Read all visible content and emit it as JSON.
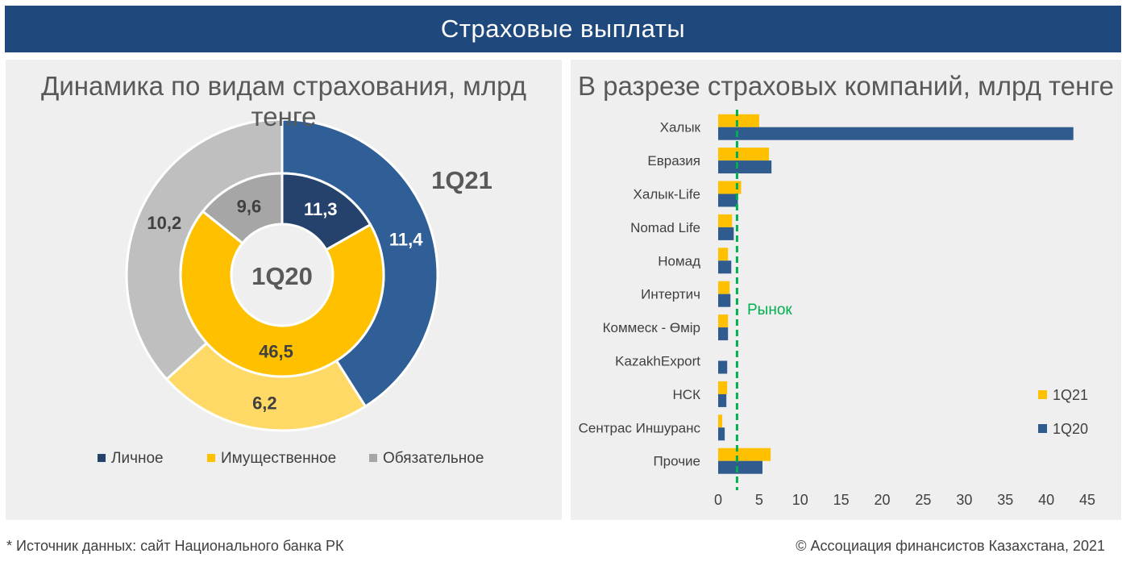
{
  "banner": "Страховые выплаты",
  "left_title": "Динамика по видам страхования, млрд тенге",
  "right_title": "В разрезе страховых компаний, млрд тенге",
  "footer_left": "* Источник данных: сайт Национального банка РК",
  "footer_right": "© Ассоциация финансистов Казахстана, 2021",
  "chart_data": [
    {
      "type": "pie",
      "variant": "donut",
      "title": "Динамика по видам страхования, млрд тенге",
      "categories": [
        "Личное",
        "Имущественное",
        "Обязательное"
      ],
      "colors": [
        "#2f5b8e",
        "#ffc000",
        "#bfbfbf"
      ],
      "inner_colors": [
        "#24426b",
        "#ffc000",
        "#a6a6a6"
      ],
      "outer_colors": [
        "#2f5f96",
        "#ffd966",
        "#bfbfbf"
      ],
      "series": [
        {
          "name": "1Q21",
          "ring": "outer",
          "values": [
            11.4,
            6.2,
            10.2
          ],
          "labels": [
            "11,4",
            "6,2",
            "10,2"
          ]
        },
        {
          "name": "1Q20",
          "ring": "inner",
          "values": [
            11.3,
            46.5,
            9.6
          ],
          "labels": [
            "11,3",
            "46,5",
            "9,6"
          ]
        }
      ],
      "legend_position": "bottom"
    },
    {
      "type": "bar",
      "orientation": "horizontal",
      "title": "В разрезе страховых компаний, млрд тенге",
      "categories": [
        "Халык",
        "Евразия",
        "Халык-Life",
        "Nomad Life",
        "Номад",
        "Интертич",
        "Коммеск - Өмір",
        "KazakhExport",
        "НСК",
        "Сентрас Иншуранс",
        "Прочие"
      ],
      "series": [
        {
          "name": "1Q21",
          "color": "#ffc000",
          "values": [
            5.0,
            6.2,
            2.8,
            1.7,
            1.2,
            1.4,
            1.2,
            0.0,
            1.1,
            0.5,
            6.4
          ]
        },
        {
          "name": "1Q20",
          "color": "#2f5b8e",
          "values": [
            43.3,
            6.5,
            2.4,
            1.9,
            1.6,
            1.5,
            1.2,
            1.1,
            1.0,
            0.8,
            5.4
          ]
        }
      ],
      "xlim": [
        0,
        45
      ],
      "xticks": [
        0,
        5,
        10,
        15,
        20,
        25,
        30,
        35,
        40,
        45
      ],
      "reference_line": {
        "label": "Рынок",
        "value": 2.3,
        "color": "#00b050"
      },
      "legend_position": "bottom-right",
      "grid": false
    }
  ]
}
